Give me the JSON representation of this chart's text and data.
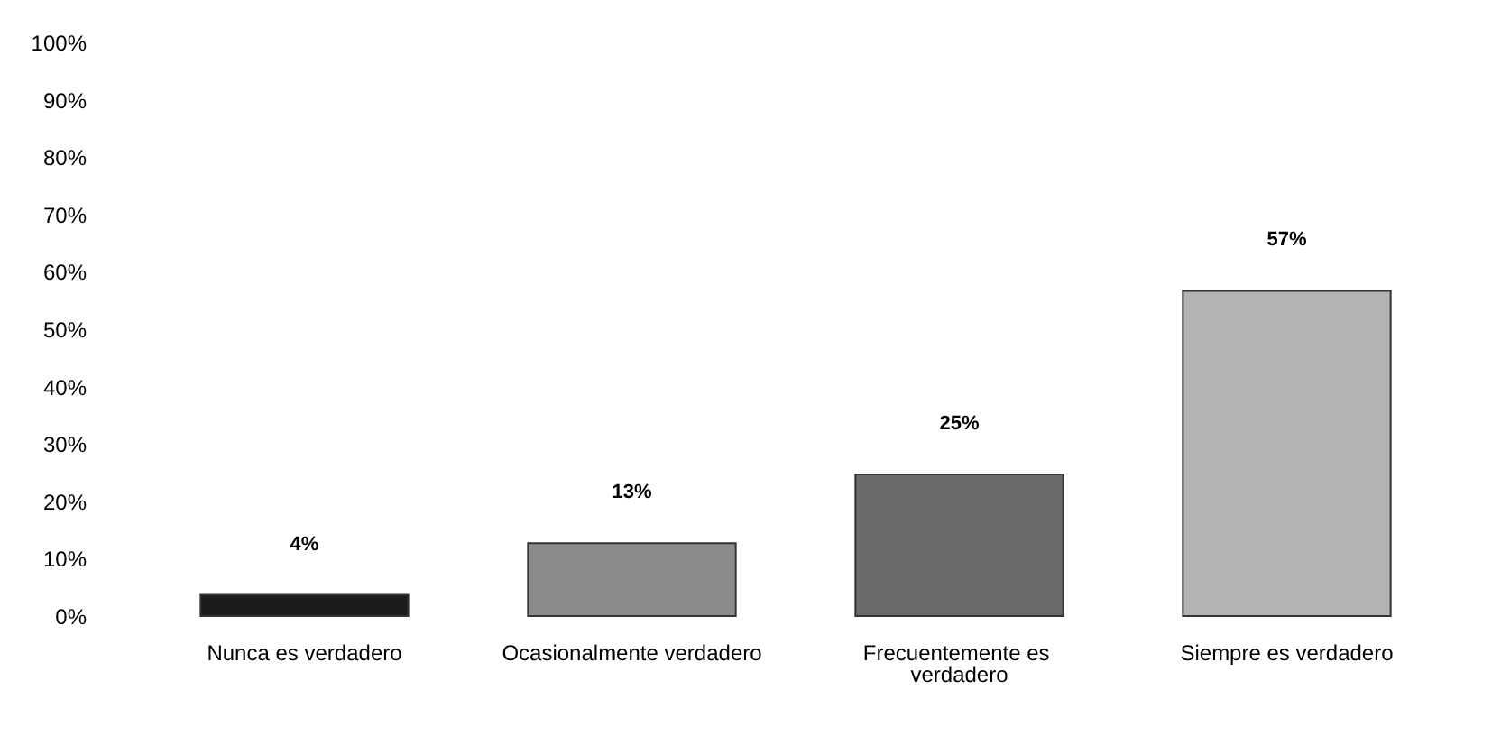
{
  "chart_data": {
    "type": "bar",
    "categories": [
      "Nunca es verdadero",
      "Ocasionalmente verdadero",
      "Frecuentemente es verdadero",
      "Siempre es verdadero"
    ],
    "values": [
      4,
      13,
      25,
      57
    ],
    "value_labels": [
      "4%",
      "13%",
      "25%",
      "57%"
    ],
    "colors": [
      "#1c1c1c",
      "#8c8c8c",
      "#6a6a6a",
      "#b3b3b3"
    ],
    "ylim": [
      0,
      100
    ],
    "yticks": [
      {
        "value": 0,
        "label": "0%"
      },
      {
        "value": 10,
        "label": "10%"
      },
      {
        "value": 20,
        "label": "20%"
      },
      {
        "value": 30,
        "label": "30%"
      },
      {
        "value": 40,
        "label": "40%"
      },
      {
        "value": 50,
        "label": "50%"
      },
      {
        "value": 60,
        "label": "60%"
      },
      {
        "value": 70,
        "label": "70%"
      },
      {
        "value": 80,
        "label": "80%"
      },
      {
        "value": 90,
        "label": "90%"
      },
      {
        "value": 100,
        "label": "100%"
      }
    ],
    "grid": false
  }
}
